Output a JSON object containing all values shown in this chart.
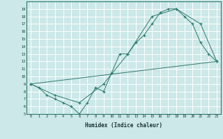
{
  "xlabel": "Humidex (Indice chaleur)",
  "bg_color": "#cce8e8",
  "grid_color": "#ffffff",
  "line_color": "#2d7a6b",
  "xlim": [
    -0.5,
    23.5
  ],
  "ylim": [
    5,
    20
  ],
  "xticks": [
    0,
    1,
    2,
    3,
    4,
    5,
    6,
    7,
    8,
    9,
    10,
    11,
    12,
    13,
    14,
    15,
    16,
    17,
    18,
    19,
    20,
    21,
    22,
    23
  ],
  "yticks": [
    5,
    6,
    7,
    8,
    9,
    10,
    11,
    12,
    13,
    14,
    15,
    16,
    17,
    18,
    19
  ],
  "line1_x": [
    0,
    1,
    2,
    3,
    4,
    5,
    6,
    7,
    8,
    9,
    10,
    11,
    12,
    13,
    14,
    15,
    16,
    17,
    18,
    19,
    20,
    21,
    22,
    23
  ],
  "line1_y": [
    9.0,
    8.5,
    7.5,
    7.0,
    6.5,
    6.0,
    5.0,
    6.5,
    8.5,
    8.0,
    10.5,
    13.0,
    13.0,
    14.5,
    15.5,
    17.0,
    18.5,
    19.0,
    19.0,
    18.0,
    17.0,
    14.5,
    13.0,
    12.0
  ],
  "line2_x": [
    0,
    3,
    6,
    9,
    12,
    15,
    18,
    21,
    23
  ],
  "line2_y": [
    9.0,
    7.5,
    6.5,
    9.0,
    13.0,
    18.0,
    19.0,
    17.0,
    12.0
  ],
  "line3_x": [
    0,
    23
  ],
  "line3_y": [
    9.0,
    12.0
  ]
}
